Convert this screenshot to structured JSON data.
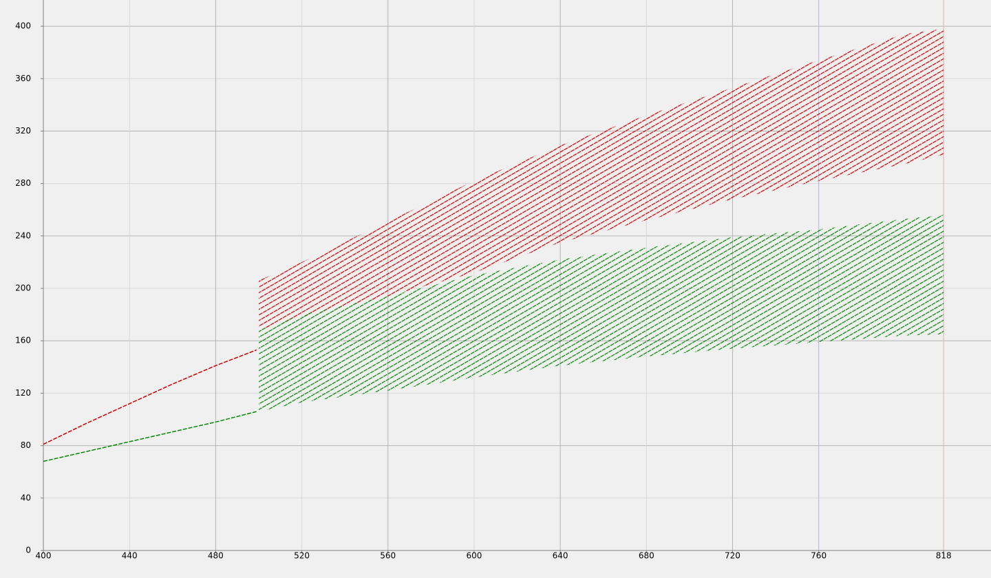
{
  "chart_data": {
    "type": "band",
    "xlim": [
      400,
      840
    ],
    "ylim": [
      0,
      420
    ],
    "xticks": [
      400,
      440,
      480,
      520,
      560,
      600,
      640,
      680,
      720,
      760,
      818
    ],
    "yticks": [
      0,
      40,
      80,
      120,
      160,
      200,
      240,
      280,
      320,
      360,
      400
    ],
    "grid": true,
    "markers": [
      {
        "x": 760,
        "color": "#b8b8f0"
      },
      {
        "x": 818,
        "color": "#f0b8b8"
      }
    ],
    "lines": [
      {
        "color": "#cc0000",
        "x": [
          400,
          420,
          440,
          460,
          480,
          499
        ],
        "values": [
          81,
          97,
          112,
          127,
          141,
          153
        ]
      },
      {
        "color": "#008800",
        "x": [
          400,
          440,
          480,
          499
        ],
        "values": [
          68,
          83,
          98,
          106
        ]
      }
    ],
    "bands": [
      {
        "color": "#cc0000",
        "x": [
          500,
          520,
          560,
          600,
          640,
          680,
          720,
          760,
          800,
          818
        ],
        "high": [
          206,
          220,
          251,
          282,
          309,
          332,
          353,
          374,
          394,
          398
        ],
        "low": [
          168,
          178,
          194,
          212,
          235,
          252,
          268,
          282,
          295,
          302
        ]
      },
      {
        "color": "#008800",
        "x": [
          500,
          520,
          560,
          600,
          640,
          680,
          720,
          760,
          800,
          818
        ],
        "high": [
          168,
          180,
          194,
          210,
          222,
          231,
          239,
          245,
          253,
          256
        ],
        "low": [
          106,
          113,
          122,
          132,
          141,
          148,
          154,
          159,
          164,
          165
        ]
      }
    ]
  }
}
